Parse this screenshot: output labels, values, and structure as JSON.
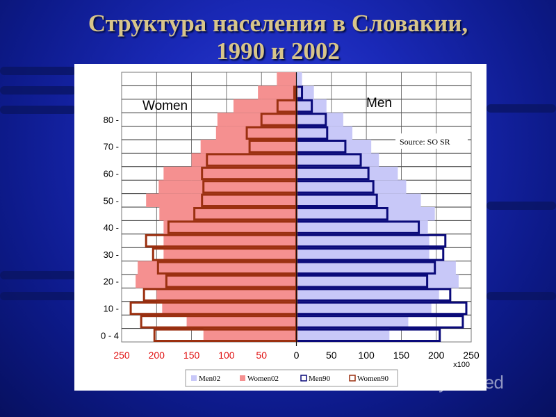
{
  "title_line1": "Структура населения в Словакии,",
  "title_line2": "1990 и 2002",
  "watermark_text": "MyShared",
  "chart_data": {
    "type": "bar",
    "orientation": "horizontal",
    "subtype": "population-pyramid",
    "y_tick_labels": [
      "0 - 4",
      "10 -",
      "20 -",
      "30 -",
      "40 -",
      "50 -",
      "60 -",
      "70 -",
      "80 -"
    ],
    "x_tick_labels": [
      "250",
      "200",
      "150",
      "100",
      "50",
      "0",
      "50",
      "100",
      "150",
      "200",
      "250"
    ],
    "x_unit_note": "x100",
    "xlim": [
      -250,
      250
    ],
    "panel_labels": {
      "women": "Women",
      "men": "Men"
    },
    "source_note": "Source: SO SR",
    "series": [
      {
        "name": "Men02",
        "color": "#c8c8f8",
        "style": "fill",
        "side": "right",
        "values": [
          133,
          160,
          193,
          204,
          232,
          228,
          190,
          190,
          188,
          198,
          178,
          157,
          145,
          118,
          107,
          80,
          67,
          43,
          25,
          8
        ]
      },
      {
        "name": "Women02",
        "color": "#f59090",
        "style": "fill",
        "side": "left",
        "values": [
          -133,
          -157,
          -192,
          -200,
          -230,
          -227,
          -190,
          -190,
          -190,
          -196,
          -215,
          -197,
          -190,
          -150,
          -137,
          -115,
          -113,
          -90,
          -55,
          -28
        ]
      },
      {
        "name": "Men90",
        "color": "#0a0a7a",
        "style": "outline",
        "side": "right",
        "values": [
          205,
          238,
          243,
          220,
          187,
          198,
          210,
          213,
          175,
          130,
          115,
          110,
          103,
          92,
          70,
          44,
          42,
          22,
          8,
          0
        ]
      },
      {
        "name": "Women90",
        "color": "#9b3010",
        "style": "outline",
        "side": "left",
        "values": [
          -203,
          -222,
          -237,
          -218,
          -186,
          -198,
          -205,
          -215,
          -183,
          -146,
          -135,
          -133,
          -135,
          -128,
          -67,
          -71,
          -50,
          -27,
          -3,
          0
        ]
      }
    ]
  }
}
